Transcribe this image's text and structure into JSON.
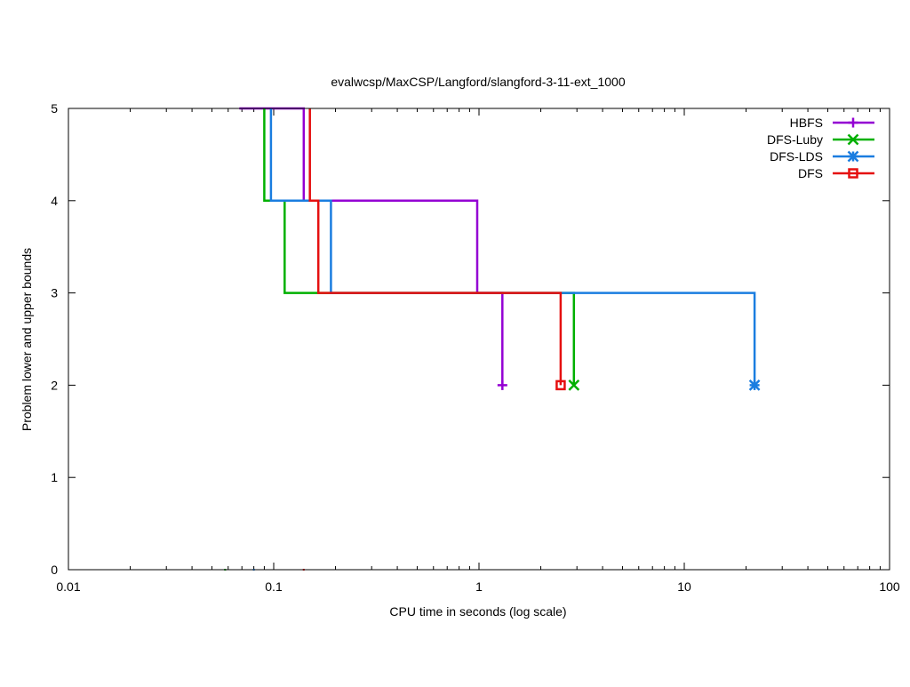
{
  "chart_data": {
    "type": "line",
    "title": "evalwcsp/MaxCSP/Langford/slangford-3-11-ext_1000",
    "xlabel": "CPU time in seconds (log scale)",
    "ylabel": "Problem lower and upper bounds",
    "xscale": "log",
    "xlim": [
      0.01,
      100
    ],
    "ylim": [
      0,
      5
    ],
    "x_ticks": [
      0.01,
      0.1,
      1,
      10,
      100
    ],
    "x_tick_labels": [
      "0.01",
      "0.1",
      "1",
      "10",
      "100"
    ],
    "y_ticks": [
      0,
      1,
      2,
      3,
      4,
      5
    ],
    "y_tick_labels": [
      "0",
      "1",
      "2",
      "3",
      "4",
      "5"
    ],
    "grid": false,
    "legend_position": "top-right",
    "series": [
      {
        "name": "HBFS",
        "color": "#9400d3",
        "marker": "plus",
        "upper": [
          [
            0.068,
            5
          ],
          [
            0.14,
            5
          ],
          [
            0.14,
            4
          ],
          [
            0.98,
            4
          ],
          [
            0.98,
            3
          ],
          [
            1.3,
            3
          ],
          [
            1.3,
            2
          ]
        ],
        "lower": [
          [
            0.058,
            0
          ]
        ],
        "end_point": [
          1.3,
          2
        ]
      },
      {
        "name": "DFS-Luby",
        "color": "#00b000",
        "marker": "cross",
        "upper": [
          [
            0.09,
            5
          ],
          [
            0.09,
            4
          ],
          [
            0.113,
            4
          ],
          [
            0.113,
            3
          ],
          [
            2.9,
            3
          ],
          [
            2.9,
            2
          ]
        ],
        "lower": [
          [
            0.058,
            0
          ]
        ],
        "end_point": [
          2.9,
          2
        ]
      },
      {
        "name": "DFS-LDS",
        "color": "#1a7de0",
        "marker": "star",
        "upper": [
          [
            0.097,
            5
          ],
          [
            0.097,
            4
          ],
          [
            0.19,
            4
          ],
          [
            0.19,
            3
          ],
          [
            22,
            3
          ],
          [
            22,
            2
          ]
        ],
        "lower": [
          [
            0.08,
            0
          ]
        ],
        "end_point": [
          22,
          2
        ]
      },
      {
        "name": "DFS",
        "color": "#e51010",
        "marker": "square",
        "upper": [
          [
            0.15,
            5
          ],
          [
            0.15,
            4
          ],
          [
            0.165,
            4
          ],
          [
            0.165,
            3
          ],
          [
            2.5,
            3
          ],
          [
            2.5,
            2
          ]
        ],
        "lower": [
          [
            0.14,
            0
          ]
        ],
        "end_point": [
          2.5,
          2
        ]
      }
    ]
  }
}
